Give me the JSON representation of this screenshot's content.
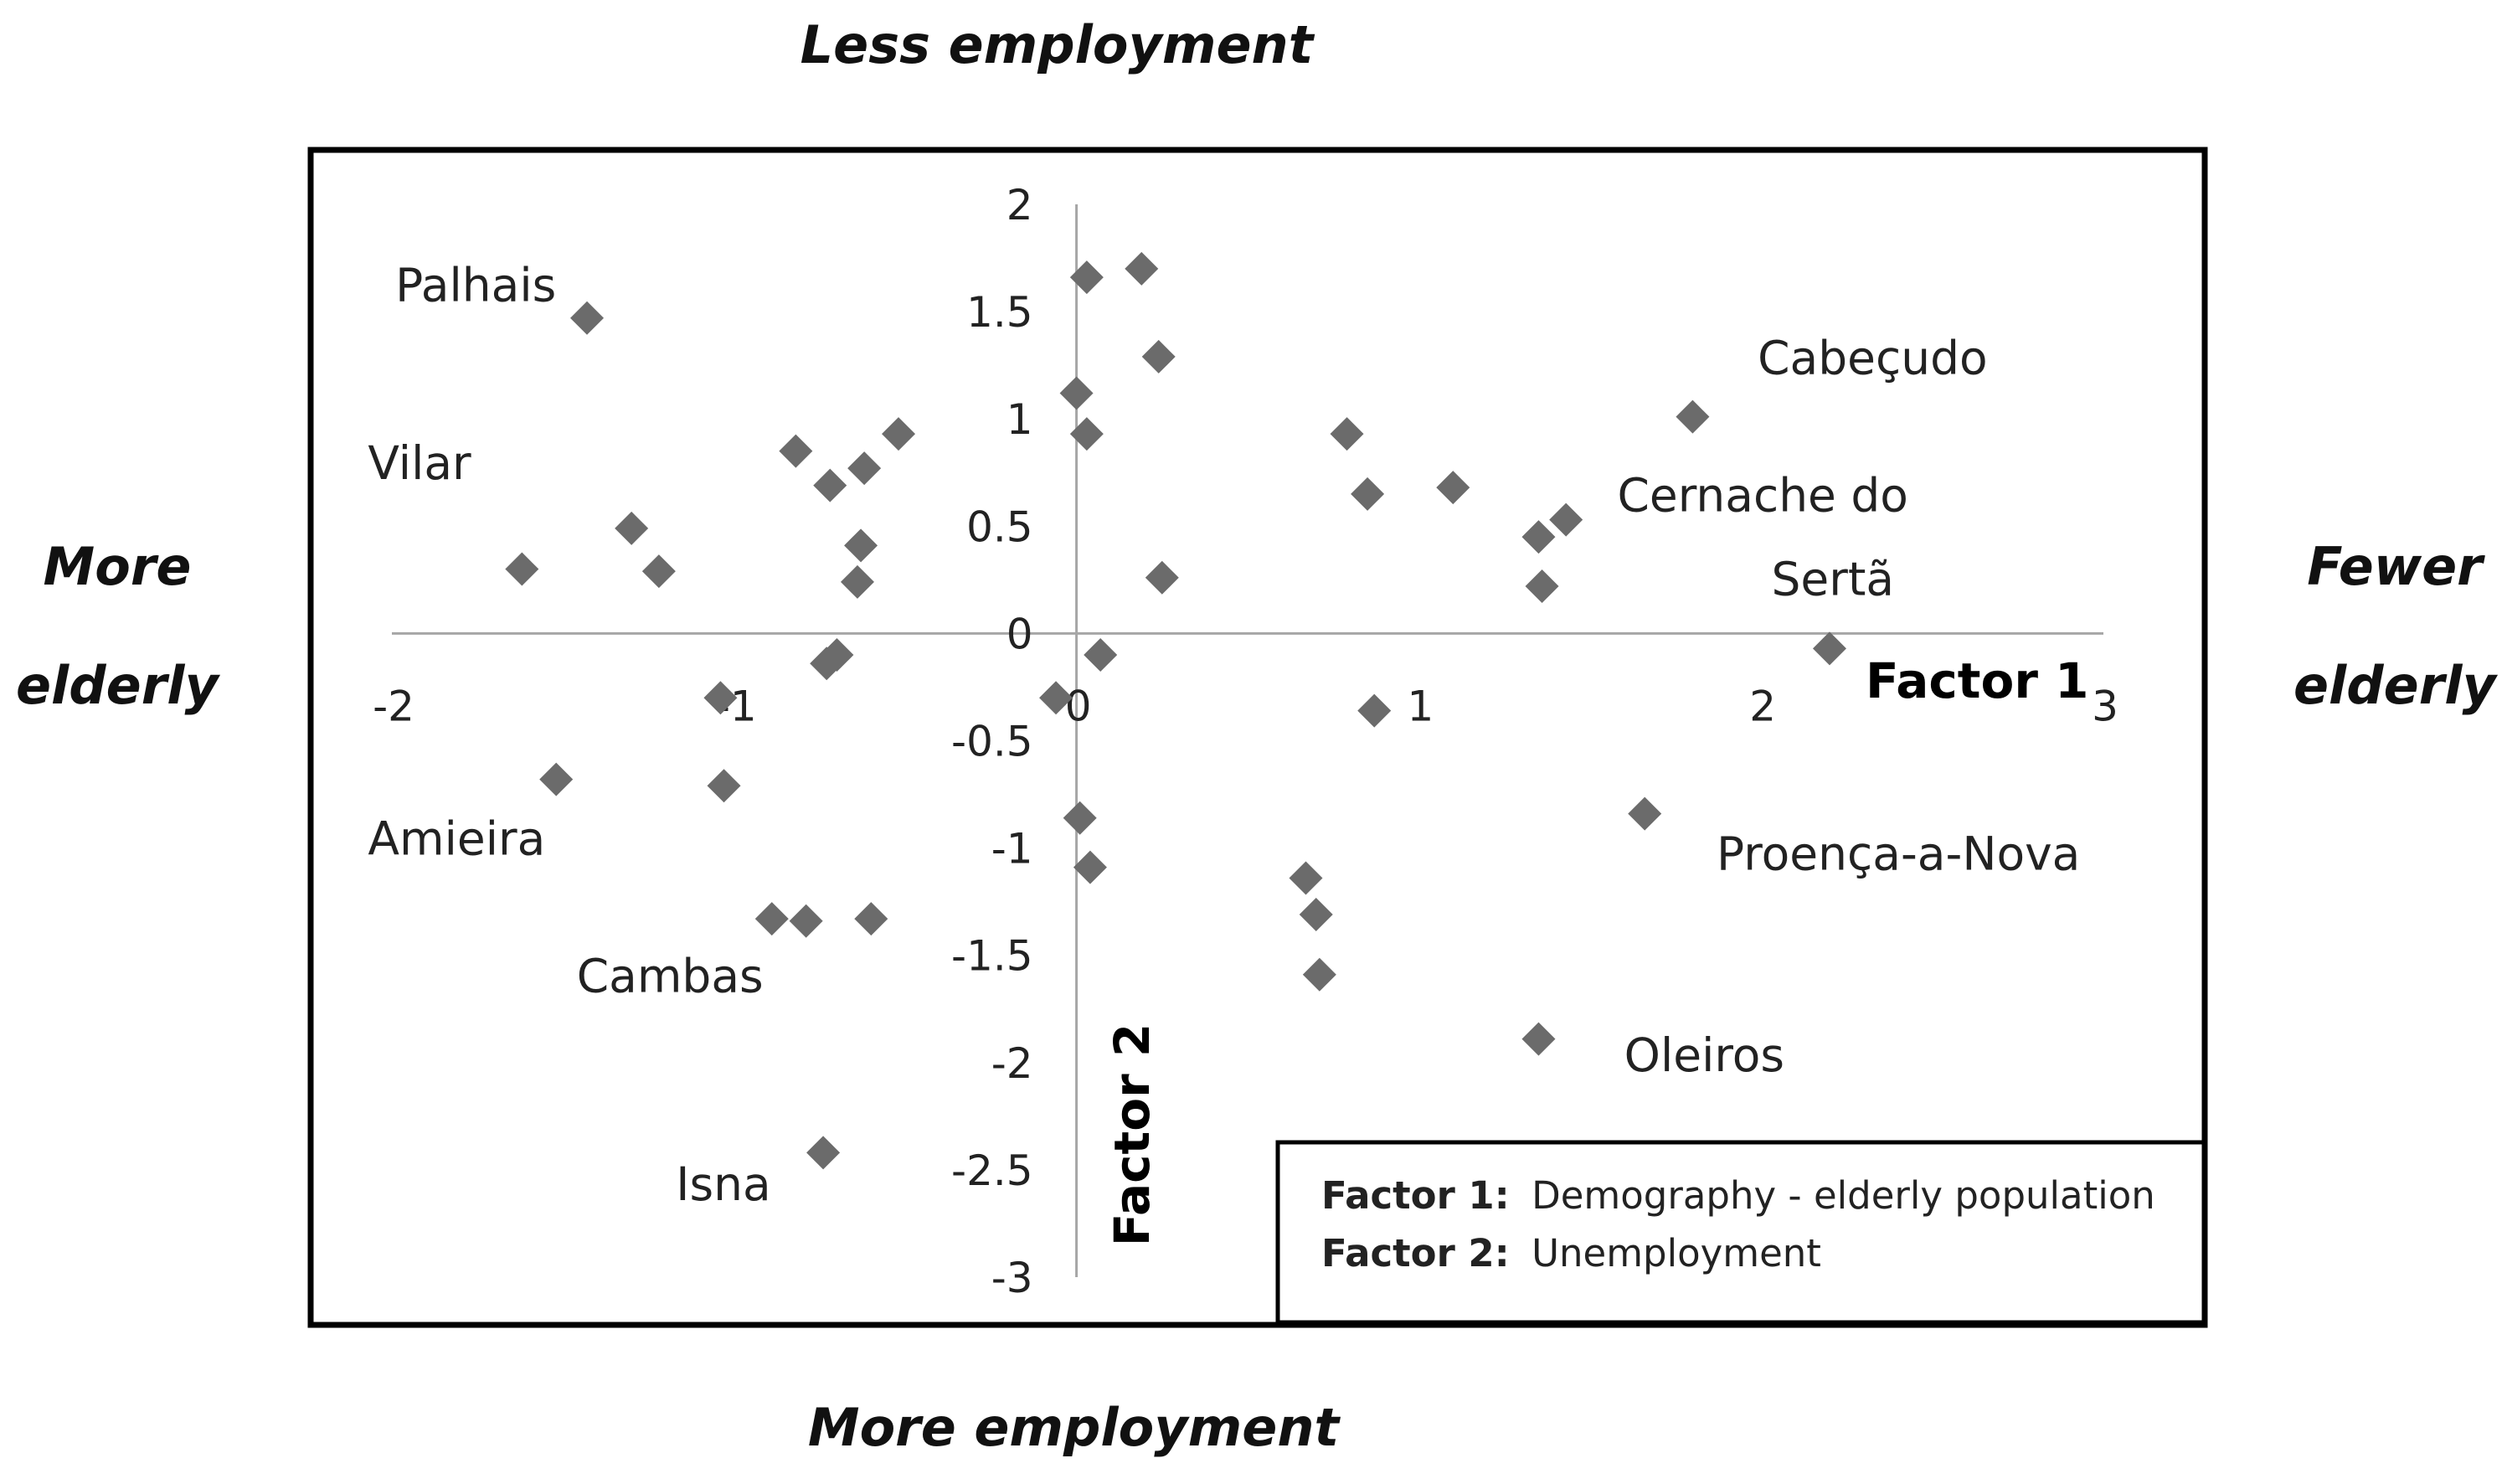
{
  "chart_data": {
    "type": "scatter",
    "xlim": [
      -2,
      3
    ],
    "ylim": [
      -3,
      2
    ],
    "x_ticks": [
      "-2",
      "-1",
      "0",
      "1",
      "2",
      "3"
    ],
    "y_ticks": [
      "2",
      "1.5",
      "1",
      "0.5",
      "0",
      "-0.5",
      "-1",
      "-1.5",
      "-2",
      "-2.5",
      "-3"
    ],
    "xlabel": "Factor 1",
    "ylabel": "Factor 2",
    "directions": {
      "top": "Less employment",
      "bottom": "More employment",
      "left_line1": "More",
      "left_line2": "elderly",
      "right_line1": "Fewer",
      "right_line2": "elderly"
    },
    "legend": [
      {
        "key": "Factor 1:",
        "text": "Demography - elderly population"
      },
      {
        "key": "Factor 2:",
        "text": "Unemployment"
      }
    ],
    "points": [
      {
        "x": -1.43,
        "y": 1.47
      },
      {
        "x": 0.03,
        "y": 1.66
      },
      {
        "x": 0.19,
        "y": 1.7
      },
      {
        "x": 0.24,
        "y": 1.29
      },
      {
        "x": 0.0,
        "y": 1.12
      },
      {
        "x": 0.03,
        "y": 0.93
      },
      {
        "x": -0.82,
        "y": 0.85
      },
      {
        "x": -0.72,
        "y": 0.69
      },
      {
        "x": -0.62,
        "y": 0.77
      },
      {
        "x": -0.52,
        "y": 0.93
      },
      {
        "x": -1.3,
        "y": 0.49
      },
      {
        "x": -1.62,
        "y": 0.3
      },
      {
        "x": -1.22,
        "y": 0.29
      },
      {
        "x": -0.63,
        "y": 0.41
      },
      {
        "x": -0.64,
        "y": 0.24
      },
      {
        "x": 0.25,
        "y": 0.26
      },
      {
        "x": 0.79,
        "y": 0.93
      },
      {
        "x": 0.85,
        "y": 0.65
      },
      {
        "x": 1.1,
        "y": 0.68
      },
      {
        "x": 1.35,
        "y": 0.45
      },
      {
        "x": 1.43,
        "y": 0.53
      },
      {
        "x": 1.36,
        "y": 0.22
      },
      {
        "x": 1.8,
        "y": 1.01
      },
      {
        "x": 2.2,
        "y": -0.07
      },
      {
        "x": -0.73,
        "y": -0.14
      },
      {
        "x": -0.7,
        "y": -0.1
      },
      {
        "x": 0.07,
        "y": -0.1
      },
      {
        "x": -0.06,
        "y": -0.3
      },
      {
        "x": -1.04,
        "y": -0.3
      },
      {
        "x": 0.87,
        "y": -0.36
      },
      {
        "x": -1.52,
        "y": -0.68
      },
      {
        "x": -1.03,
        "y": -0.71
      },
      {
        "x": 1.66,
        "y": -0.84
      },
      {
        "x": 0.01,
        "y": -0.86
      },
      {
        "x": 0.04,
        "y": -1.09
      },
      {
        "x": 0.67,
        "y": -1.14
      },
      {
        "x": 0.7,
        "y": -1.31
      },
      {
        "x": 0.71,
        "y": -1.59
      },
      {
        "x": -0.89,
        "y": -1.33
      },
      {
        "x": -0.79,
        "y": -1.34
      },
      {
        "x": -0.6,
        "y": -1.33
      },
      {
        "x": 1.35,
        "y": -1.89
      },
      {
        "x": -0.74,
        "y": -2.42
      }
    ],
    "annotations": [
      {
        "text": "Palhais",
        "x": -1.99,
        "y": 1.62
      },
      {
        "text": "Vilar",
        "x": -2.07,
        "y": 0.79
      },
      {
        "text": "Amieira",
        "x": -2.07,
        "y": -0.96
      },
      {
        "text": "Cambas",
        "x": -1.46,
        "y": -1.6
      },
      {
        "text": "Isna",
        "x": -1.17,
        "y": -2.57
      },
      {
        "text": "Cabeçudo",
        "x": 1.99,
        "y": 1.28
      },
      {
        "text": "Cernache do",
        "x": 1.58,
        "y": 0.64
      },
      {
        "text": "Sertã",
        "x": 2.03,
        "y": 0.25
      },
      {
        "text": "Proença-a-Nova",
        "x": 1.87,
        "y": -1.03
      },
      {
        "text": "Oleiros",
        "x": 1.6,
        "y": -1.97
      }
    ]
  }
}
